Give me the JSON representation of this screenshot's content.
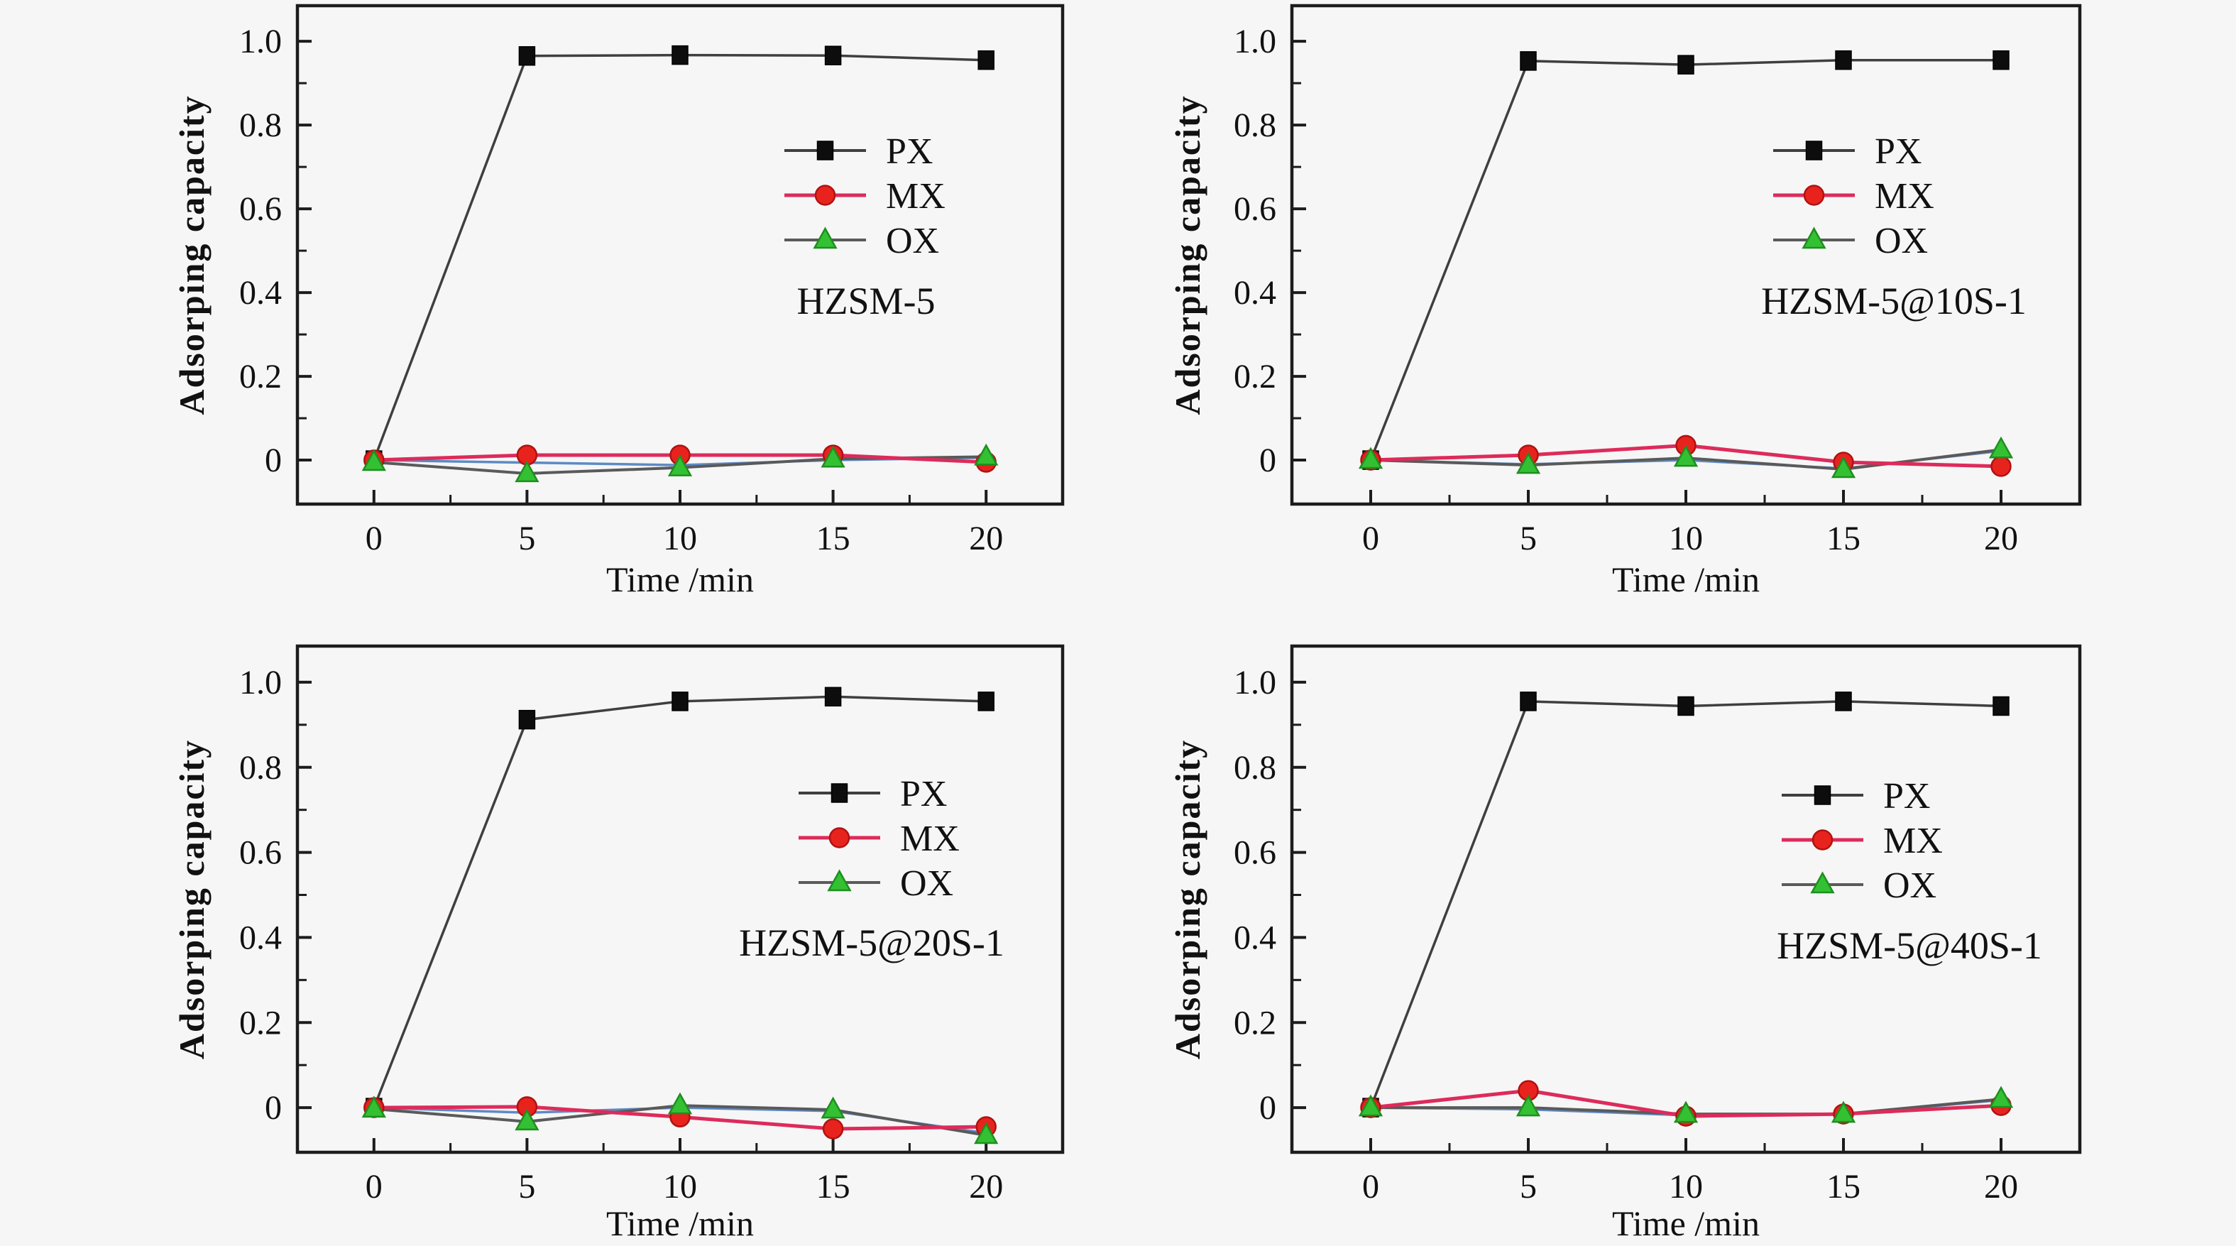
{
  "page": {
    "background_color": "#f6f6f6",
    "figure_type": "2x2 grid of adsorption kinetics line charts"
  },
  "chart_data": [
    {
      "type": "line",
      "title": "HZSM-5",
      "xlabel": "Time /min",
      "ylabel": "Adsorping capacity",
      "x": [
        0,
        5,
        10,
        15,
        20
      ],
      "xlim": [
        -2.5,
        22.5
      ],
      "ylim": [
        -0.105,
        1.085
      ],
      "grid": false,
      "xticks": {
        "major": [
          0,
          5,
          10,
          15,
          20
        ],
        "minor": [
          2.5,
          7.5,
          12.5,
          17.5
        ],
        "labels": [
          "0",
          "5",
          "10",
          "15",
          "20"
        ]
      },
      "yticks": {
        "major": [
          0,
          0.2,
          0.4,
          0.6,
          0.8,
          1.0
        ],
        "minor": [
          0.1,
          0.3,
          0.5,
          0.7,
          0.9
        ],
        "labels": [
          "0",
          "0.2",
          "0.4",
          "0.6",
          "0.8",
          "1.0"
        ]
      },
      "legend": {
        "position": "inside-center-right",
        "entries": [
          "PX",
          "MX",
          "OX"
        ]
      },
      "series": [
        {
          "name": "PX",
          "marker": "square",
          "line_color": "#3f3f3f",
          "marker_fill": "#0d0d0d",
          "marker_edge": "#000000",
          "values": [
            0,
            0.965,
            0.967,
            0.966,
            0.955
          ]
        },
        {
          "name": "MX",
          "marker": "circle",
          "line_color": "#dd2b5b",
          "marker_fill": "#e8231d",
          "marker_edge": "#b01212",
          "values": [
            0,
            0.012,
            0.012,
            0.012,
            -0.005
          ]
        },
        {
          "name": "OX",
          "marker": "triangle",
          "line_color": "#5a5a5a",
          "marker_fill": "#33c133",
          "marker_edge": "#1e8f1e",
          "values": [
            -0.005,
            -0.032,
            -0.018,
            0.003,
            0.008
          ]
        }
      ],
      "unlabeled_blue_line": {
        "color": "#4d7ebf",
        "values": [
          0,
          -0.006,
          -0.012,
          0.0,
          0.006
        ]
      }
    },
    {
      "type": "line",
      "title": "HZSM-5@10S-1",
      "xlabel": "Time /min",
      "ylabel": "Adsorping capacity",
      "x": [
        0,
        5,
        10,
        15,
        20
      ],
      "xlim": [
        -2.5,
        22.5
      ],
      "ylim": [
        -0.105,
        1.085
      ],
      "grid": false,
      "xticks": {
        "major": [
          0,
          5,
          10,
          15,
          20
        ],
        "minor": [
          2.5,
          7.5,
          12.5,
          17.5
        ],
        "labels": [
          "0",
          "5",
          "10",
          "15",
          "20"
        ]
      },
      "yticks": {
        "major": [
          0,
          0.2,
          0.4,
          0.6,
          0.8,
          1.0
        ],
        "minor": [
          0.1,
          0.3,
          0.5,
          0.7,
          0.9
        ],
        "labels": [
          "0",
          "0.2",
          "0.4",
          "0.6",
          "0.8",
          "1.0"
        ]
      },
      "legend": {
        "position": "inside-center-right",
        "entries": [
          "PX",
          "MX",
          "OX"
        ]
      },
      "series": [
        {
          "name": "PX",
          "marker": "square",
          "line_color": "#3f3f3f",
          "marker_fill": "#0d0d0d",
          "marker_edge": "#000000",
          "values": [
            0,
            0.953,
            0.944,
            0.955,
            0.955
          ]
        },
        {
          "name": "MX",
          "marker": "circle",
          "line_color": "#dd2b5b",
          "marker_fill": "#e8231d",
          "marker_edge": "#b01212",
          "values": [
            0,
            0.012,
            0.035,
            -0.005,
            -0.015
          ]
        },
        {
          "name": "OX",
          "marker": "triangle",
          "line_color": "#5a5a5a",
          "marker_fill": "#33c133",
          "marker_edge": "#1e8f1e",
          "values": [
            0,
            -0.012,
            0.005,
            -0.022,
            0.025
          ]
        }
      ],
      "unlabeled_blue_line": {
        "color": "#4d7ebf",
        "values": [
          0,
          -0.01,
          0.0,
          -0.02,
          0.022
        ]
      }
    },
    {
      "type": "line",
      "title": "HZSM-5@20S-1",
      "xlabel": "Time /min",
      "ylabel": "Adsorping capacity",
      "x": [
        0,
        5,
        10,
        15,
        20
      ],
      "xlim": [
        -2.5,
        22.5
      ],
      "ylim": [
        -0.105,
        1.085
      ],
      "grid": false,
      "xticks": {
        "major": [
          0,
          5,
          10,
          15,
          20
        ],
        "minor": [
          2.5,
          7.5,
          12.5,
          17.5
        ],
        "labels": [
          "0",
          "5",
          "10",
          "15",
          "20"
        ]
      },
      "yticks": {
        "major": [
          0,
          0.2,
          0.4,
          0.6,
          0.8,
          1.0
        ],
        "minor": [
          0.1,
          0.3,
          0.5,
          0.7,
          0.9
        ],
        "labels": [
          "0",
          "0.2",
          "0.4",
          "0.6",
          "0.8",
          "1.0"
        ]
      },
      "legend": {
        "position": "inside-center-right",
        "entries": [
          "PX",
          "MX",
          "OX"
        ]
      },
      "series": [
        {
          "name": "PX",
          "marker": "square",
          "line_color": "#3f3f3f",
          "marker_fill": "#0d0d0d",
          "marker_edge": "#000000",
          "values": [
            0,
            0.912,
            0.955,
            0.966,
            0.955
          ]
        },
        {
          "name": "MX",
          "marker": "circle",
          "line_color": "#dd2b5b",
          "marker_fill": "#e8231d",
          "marker_edge": "#b01212",
          "values": [
            0,
            0.002,
            -0.022,
            -0.05,
            -0.045
          ]
        },
        {
          "name": "OX",
          "marker": "triangle",
          "line_color": "#5a5a5a",
          "marker_fill": "#33c133",
          "marker_edge": "#1e8f1e",
          "values": [
            -0.003,
            -0.033,
            0.005,
            -0.005,
            -0.065
          ]
        }
      ],
      "unlabeled_blue_line": {
        "color": "#4d7ebf",
        "values": [
          0,
          -0.012,
          0.0,
          -0.008,
          -0.06
        ]
      }
    },
    {
      "type": "line",
      "title": "HZSM-5@40S-1",
      "xlabel": "Time /min",
      "ylabel": "Adsorping capacity",
      "x": [
        0,
        5,
        10,
        15,
        20
      ],
      "xlim": [
        -2.5,
        22.5
      ],
      "ylim": [
        -0.105,
        1.085
      ],
      "grid": false,
      "xticks": {
        "major": [
          0,
          5,
          10,
          15,
          20
        ],
        "minor": [
          2.5,
          7.5,
          12.5,
          17.5
        ],
        "labels": [
          "0",
          "5",
          "10",
          "15",
          "20"
        ]
      },
      "yticks": {
        "major": [
          0,
          0.2,
          0.4,
          0.6,
          0.8,
          1.0
        ],
        "minor": [
          0.1,
          0.3,
          0.5,
          0.7,
          0.9
        ],
        "labels": [
          "0",
          "0.2",
          "0.4",
          "0.6",
          "0.8",
          "1.0"
        ]
      },
      "legend": {
        "position": "inside-center-right",
        "entries": [
          "PX",
          "MX",
          "OX"
        ]
      },
      "series": [
        {
          "name": "PX",
          "marker": "square",
          "line_color": "#3f3f3f",
          "marker_fill": "#0d0d0d",
          "marker_edge": "#000000",
          "values": [
            0,
            0.955,
            0.944,
            0.955,
            0.944
          ]
        },
        {
          "name": "MX",
          "marker": "circle",
          "line_color": "#dd2b5b",
          "marker_fill": "#e8231d",
          "marker_edge": "#b01212",
          "values": [
            0,
            0.04,
            -0.02,
            -0.015,
            0.005
          ]
        },
        {
          "name": "OX",
          "marker": "triangle",
          "line_color": "#5a5a5a",
          "marker_fill": "#33c133",
          "marker_edge": "#1e8f1e",
          "values": [
            0,
            0.0,
            -0.015,
            -0.015,
            0.02
          ]
        }
      ],
      "unlabeled_blue_line": {
        "color": "#4d7ebf",
        "values": [
          0,
          -0.004,
          -0.018,
          -0.016,
          0.018
        ]
      }
    }
  ],
  "style": {
    "axis_color": "#1c1c1c",
    "text_color": "#111111"
  }
}
